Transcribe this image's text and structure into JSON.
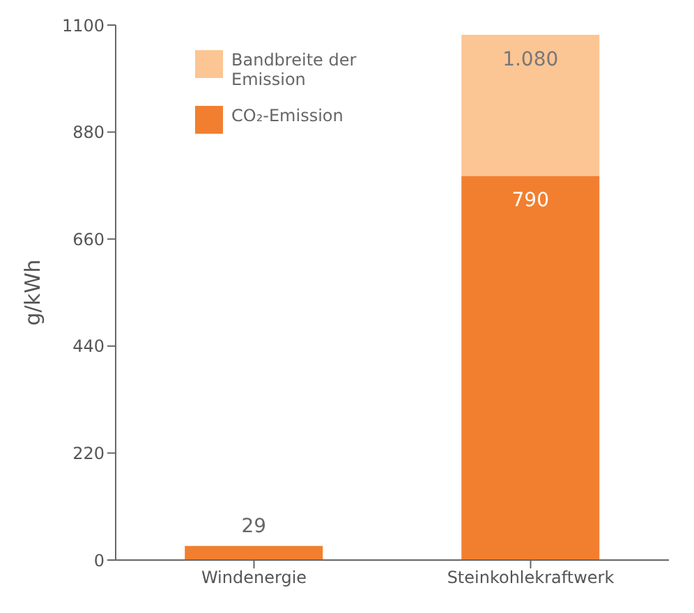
{
  "chart_data": {
    "type": "bar",
    "stacked": true,
    "ylabel": "g/kWh",
    "categories": [
      "Windenergie",
      "Steinkohlekraftwerk"
    ],
    "series": [
      {
        "name": "CO₂-Emission",
        "color": "#f27f2f",
        "values": [
          29,
          790
        ],
        "value_labels": [
          "29",
          "790"
        ]
      },
      {
        "name": "Bandbreite der Emission",
        "color": "#fcc594",
        "values": [
          null,
          290
        ]
      }
    ],
    "totals": [
      null,
      "1.080"
    ],
    "ylim": [
      0,
      1100
    ],
    "yticks": [
      0,
      220,
      440,
      660,
      880,
      1100
    ],
    "grid": false,
    "legend": "top left"
  }
}
